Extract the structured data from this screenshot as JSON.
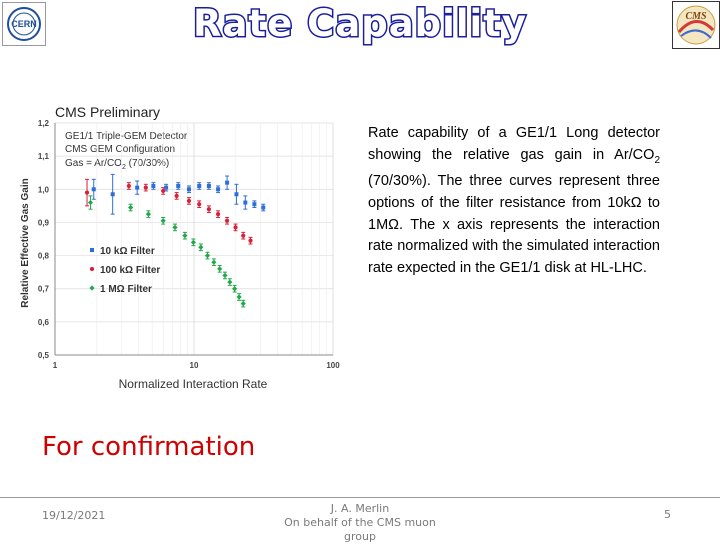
{
  "header": {
    "title": "Rate Capability",
    "cern_logo_text": "CERN",
    "cms_logo_text": "CMS"
  },
  "description": {
    "text_before_sub": "Rate capability of a GE1/1 Long detector showing the relative gas gain in Ar/CO",
    "sub": "2",
    "text_after_sub": " (70/30%). The three curves represent three options of the filter resistance from 10kΩ to 1MΩ. The x axis represents the interaction rate normalized with the simulated interaction rate expected in the GE1/1 disk at HL-LHC."
  },
  "confirmation": "For confirmation",
  "footer": {
    "date": "19/12/2021",
    "author_line1": "J. A. Merlin",
    "author_line2": "On behalf of the CMS muon group",
    "page_number": "5"
  },
  "colors": {
    "title_stroke": "#1b1f9a",
    "confirmation": "#d00000",
    "series_10k": "#2e6fd6",
    "series_100k": "#d9203a",
    "series_1M": "#22a84a"
  },
  "chart_data": {
    "type": "scatter",
    "title": "CMS Preliminary",
    "annotation_line1": "GE1/1 Triple-GEM Detector",
    "annotation_line2": "CMS GEM Configuration",
    "annotation_line3_pre": "Gas = Ar/CO",
    "annotation_line3_sub": "2",
    "annotation_line3_post": " (70/30%)",
    "xlabel": "Normalized Interaction Rate",
    "ylabel": "Relative Effective Gas Gain",
    "xscale": "log",
    "xlim": [
      1,
      100
    ],
    "ylim": [
      0.5,
      1.2
    ],
    "xticks": [
      1,
      10,
      100
    ],
    "xtick_labels": [
      "1",
      "10",
      "100"
    ],
    "yticks": [
      0.5,
      0.6,
      0.7,
      0.8,
      0.9,
      1.0,
      1.1,
      1.2
    ],
    "ytick_labels": [
      "0,5",
      "0,6",
      "0,7",
      "0,8",
      "0,9",
      "1,0",
      "1,1",
      "1,2"
    ],
    "legend_position": "lower-left",
    "series": [
      {
        "name": "10 kΩ Filter",
        "color": "#2e6fd6",
        "x": [
          1.9,
          2.6,
          3.9,
          5.1,
          6.3,
          7.7,
          9.2,
          10.9,
          12.8,
          14.9,
          17.3,
          20.2,
          23.4,
          27.2,
          31.5
        ],
        "y": [
          1.0,
          0.985,
          1.005,
          1.01,
          1.005,
          1.01,
          1.0,
          1.01,
          1.01,
          1.0,
          1.02,
          0.985,
          0.96,
          0.955,
          0.945
        ],
        "err": [
          0.03,
          0.06,
          0.02,
          0.01,
          0.01,
          0.01,
          0.01,
          0.01,
          0.01,
          0.01,
          0.02,
          0.03,
          0.02,
          0.01,
          0.01
        ]
      },
      {
        "name": "100 kΩ Filter",
        "color": "#d9203a",
        "x": [
          1.7,
          3.4,
          4.5,
          6.0,
          7.5,
          9.2,
          10.9,
          12.8,
          14.9,
          17.3,
          19.9,
          22.6,
          25.5
        ],
        "y": [
          0.99,
          1.01,
          1.005,
          0.995,
          0.98,
          0.965,
          0.955,
          0.94,
          0.925,
          0.905,
          0.885,
          0.86,
          0.845
        ],
        "err": [
          0.04,
          0.01,
          0.01,
          0.01,
          0.01,
          0.01,
          0.01,
          0.01,
          0.01,
          0.01,
          0.01,
          0.01,
          0.01
        ]
      },
      {
        "name": "1 MΩ Filter",
        "color": "#22a84a",
        "x": [
          1.8,
          3.5,
          4.7,
          6.0,
          7.3,
          8.6,
          9.9,
          11.2,
          12.5,
          13.9,
          15.3,
          16.7,
          18.1,
          19.6,
          21.1,
          22.6
        ],
        "y": [
          0.96,
          0.945,
          0.925,
          0.905,
          0.885,
          0.86,
          0.84,
          0.825,
          0.8,
          0.78,
          0.76,
          0.74,
          0.72,
          0.7,
          0.675,
          0.655
        ],
        "err": [
          0.02,
          0.01,
          0.01,
          0.01,
          0.01,
          0.01,
          0.01,
          0.01,
          0.01,
          0.01,
          0.01,
          0.01,
          0.01,
          0.01,
          0.01,
          0.01
        ]
      }
    ]
  }
}
